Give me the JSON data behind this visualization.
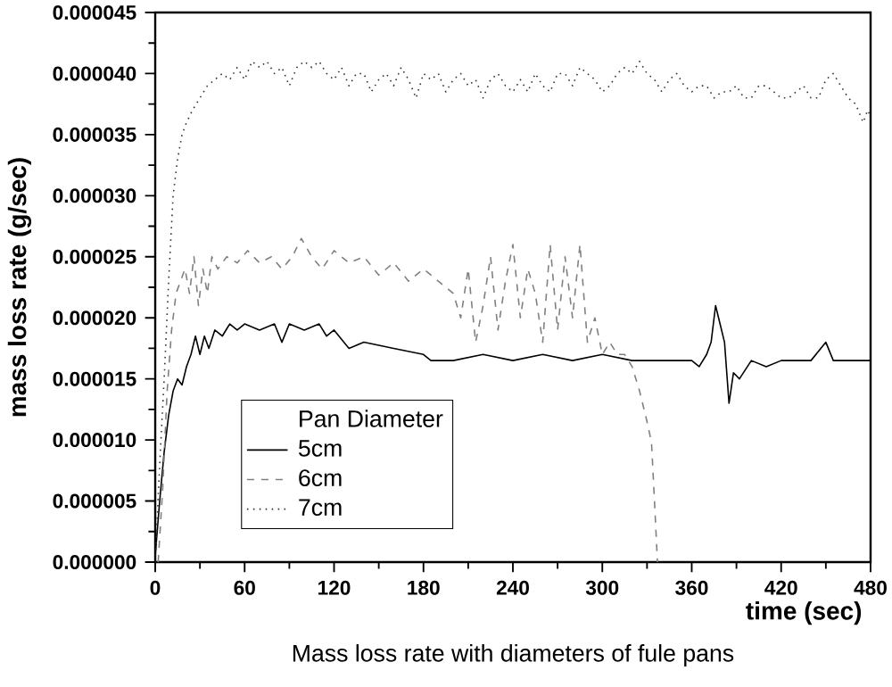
{
  "chart_data": {
    "type": "line",
    "title": "Mass loss rate with diameters of fule pans",
    "xlabel": "time (sec)",
    "ylabel": "mass loss rate (g/sec)",
    "legend_title": "Pan Diameter",
    "legend": "bottom left",
    "grid": false,
    "marker": "none",
    "xlim": [
      0,
      480
    ],
    "xticks": [
      0,
      60,
      120,
      180,
      240,
      300,
      360,
      420,
      480
    ],
    "ylim": [
      0,
      4.5e-05
    ],
    "yticks": [
      {
        "value": 0,
        "label": "0.000000"
      },
      {
        "value": 5e-06,
        "label": "0.000005"
      },
      {
        "value": 1e-05,
        "label": "0.000010"
      },
      {
        "value": 1.5e-05,
        "label": "0.000015"
      },
      {
        "value": 2e-05,
        "label": "0.000020"
      },
      {
        "value": 2.5e-05,
        "label": "0.000025"
      },
      {
        "value": 3e-05,
        "label": "0.000030"
      },
      {
        "value": 3.5e-05,
        "label": "0.000035"
      },
      {
        "value": 4e-05,
        "label": "0.000040"
      },
      {
        "value": 4.5e-05,
        "label": "0.000045"
      }
    ],
    "series": [
      {
        "name": "5cm",
        "color": "#000000",
        "line_style": "solid",
        "x": [
          0,
          3,
          6,
          9,
          12,
          15,
          18,
          21,
          24,
          27,
          30,
          33,
          36,
          40,
          45,
          50,
          55,
          60,
          70,
          80,
          85,
          90,
          100,
          110,
          115,
          120,
          130,
          140,
          160,
          180,
          185,
          200,
          220,
          240,
          260,
          280,
          300,
          320,
          340,
          360,
          365,
          370,
          373,
          376,
          379,
          382,
          385,
          388,
          392,
          400,
          410,
          420,
          440,
          450,
          455,
          460,
          480
        ],
        "values": [
          5e-07,
          5e-06,
          9e-06,
          1.2e-05,
          1.4e-05,
          1.5e-05,
          1.45e-05,
          1.6e-05,
          1.7e-05,
          1.85e-05,
          1.7e-05,
          1.85e-05,
          1.75e-05,
          1.9e-05,
          1.85e-05,
          1.95e-05,
          1.9e-05,
          1.95e-05,
          1.9e-05,
          1.95e-05,
          1.8e-05,
          1.95e-05,
          1.9e-05,
          1.95e-05,
          1.85e-05,
          1.9e-05,
          1.75e-05,
          1.8e-05,
          1.75e-05,
          1.7e-05,
          1.65e-05,
          1.65e-05,
          1.7e-05,
          1.65e-05,
          1.7e-05,
          1.65e-05,
          1.7e-05,
          1.65e-05,
          1.65e-05,
          1.65e-05,
          1.6e-05,
          1.7e-05,
          1.8e-05,
          2.1e-05,
          1.95e-05,
          1.8e-05,
          1.3e-05,
          1.55e-05,
          1.5e-05,
          1.65e-05,
          1.6e-05,
          1.65e-05,
          1.65e-05,
          1.8e-05,
          1.65e-05,
          1.65e-05,
          1.65e-05
        ]
      },
      {
        "name": "6cm",
        "color": "#808080",
        "line_style": "dashed",
        "x": [
          2,
          5,
          8,
          11,
          14,
          17,
          20,
          23,
          26,
          29,
          32,
          35,
          38,
          42,
          48,
          55,
          62,
          70,
          78,
          85,
          92,
          98,
          105,
          112,
          120,
          130,
          140,
          150,
          160,
          170,
          180,
          190,
          200,
          205,
          210,
          215,
          220,
          225,
          230,
          235,
          240,
          245,
          250,
          255,
          260,
          265,
          270,
          275,
          280,
          285,
          290,
          295,
          300,
          305,
          310,
          315,
          320,
          325,
          330,
          333,
          335,
          337
        ],
        "values": [
          0,
          6e-06,
          1.4e-05,
          1.9e-05,
          2.2e-05,
          2.3e-05,
          2.4e-05,
          2.2e-05,
          2.5e-05,
          2.1e-05,
          2.4e-05,
          2.2e-05,
          2.5e-05,
          2.4e-05,
          2.5e-05,
          2.45e-05,
          2.55e-05,
          2.45e-05,
          2.5e-05,
          2.4e-05,
          2.5e-05,
          2.65e-05,
          2.5e-05,
          2.4e-05,
          2.55e-05,
          2.45e-05,
          2.5e-05,
          2.35e-05,
          2.45e-05,
          2.3e-05,
          2.4e-05,
          2.3e-05,
          2.2e-05,
          2e-05,
          2.4e-05,
          1.8e-05,
          2.1e-05,
          2.5e-05,
          1.9e-05,
          2.3e-05,
          2.6e-05,
          2e-05,
          2.4e-05,
          2.2e-05,
          1.8e-05,
          2.6e-05,
          1.9e-05,
          2.5e-05,
          2e-05,
          2.6e-05,
          1.8e-05,
          2e-05,
          1.7e-05,
          1.8e-05,
          1.7e-05,
          1.7e-05,
          1.6e-05,
          1.4e-05,
          1.15e-05,
          9.8e-06,
          5e-06,
          0
        ]
      },
      {
        "name": "7cm",
        "color": "#333333",
        "line_style": "dotted",
        "x": [
          0,
          3,
          6,
          9,
          12,
          15,
          18,
          21,
          25,
          30,
          35,
          40,
          45,
          50,
          55,
          60,
          65,
          70,
          75,
          80,
          85,
          90,
          95,
          100,
          105,
          110,
          115,
          120,
          125,
          130,
          135,
          140,
          145,
          150,
          155,
          160,
          165,
          170,
          175,
          180,
          185,
          190,
          195,
          200,
          205,
          210,
          215,
          220,
          225,
          230,
          235,
          240,
          245,
          250,
          255,
          260,
          265,
          270,
          275,
          280,
          285,
          290,
          295,
          300,
          305,
          310,
          315,
          320,
          325,
          330,
          335,
          340,
          345,
          350,
          355,
          360,
          365,
          370,
          375,
          380,
          385,
          390,
          395,
          400,
          405,
          410,
          415,
          420,
          425,
          430,
          435,
          440,
          445,
          450,
          455,
          460,
          465,
          470,
          475,
          478,
          480
        ],
        "values": [
          0,
          8e-06,
          1.5e-05,
          2.3e-05,
          3e-05,
          3.3e-05,
          3.5e-05,
          3.6e-05,
          3.7e-05,
          3.8e-05,
          3.9e-05,
          3.95e-05,
          4e-05,
          3.95e-05,
          4.05e-05,
          3.95e-05,
          4.1e-05,
          4.05e-05,
          4.1e-05,
          4e-05,
          4.05e-05,
          3.9e-05,
          4.05e-05,
          4.1e-05,
          4.05e-05,
          4.1e-05,
          4e-05,
          3.95e-05,
          4.05e-05,
          3.9e-05,
          4e-05,
          4e-05,
          3.85e-05,
          3.95e-05,
          4e-05,
          3.9e-05,
          4.05e-05,
          3.95e-05,
          3.8e-05,
          4e-05,
          3.95e-05,
          4e-05,
          3.85e-05,
          3.95e-05,
          4e-05,
          3.9e-05,
          3.95e-05,
          3.8e-05,
          3.95e-05,
          4e-05,
          3.9e-05,
          3.85e-05,
          3.95e-05,
          3.85e-05,
          4e-05,
          3.9e-05,
          3.85e-05,
          4e-05,
          4e-05,
          3.9e-05,
          4.05e-05,
          4e-05,
          3.95e-05,
          3.85e-05,
          3.9e-05,
          4e-05,
          4.05e-05,
          4e-05,
          4.1e-05,
          4e-05,
          3.95e-05,
          3.85e-05,
          3.95e-05,
          4e-05,
          3.9e-05,
          3.85e-05,
          3.9e-05,
          3.9e-05,
          3.8e-05,
          3.85e-05,
          3.85e-05,
          3.9e-05,
          3.8e-05,
          3.8e-05,
          3.9e-05,
          3.9e-05,
          3.85e-05,
          3.8e-05,
          3.8e-05,
          3.85e-05,
          3.9e-05,
          3.8e-05,
          3.8e-05,
          3.95e-05,
          4e-05,
          3.9e-05,
          3.8e-05,
          3.75e-05,
          3.6e-05,
          3.7e-05,
          3.65e-05
        ]
      }
    ]
  }
}
